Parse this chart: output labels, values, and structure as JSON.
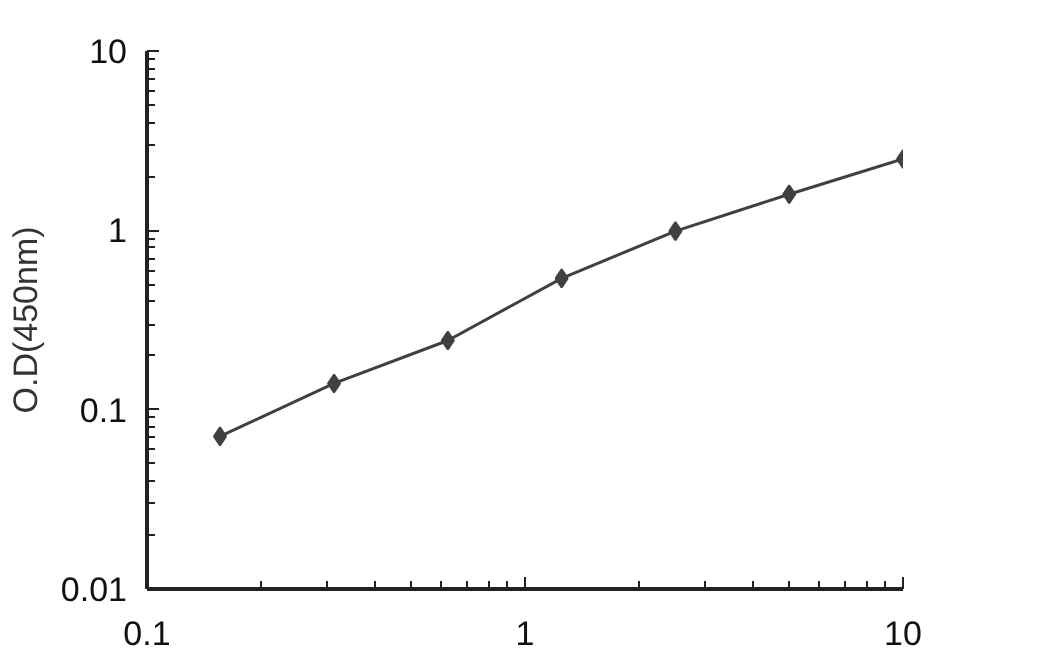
{
  "chart_data": {
    "type": "line",
    "ylabel": "O.D(450nm)",
    "log": "xy",
    "xlim": [
      0.1,
      10
    ],
    "ylim": [
      0.01,
      10
    ],
    "xticks": [
      0.1,
      1,
      10
    ],
    "yticks": [
      0.01,
      0.1,
      1,
      10
    ],
    "marker": "diamond",
    "line_style": "solid",
    "series": [
      {
        "color": "#404040",
        "x": [
          0.156,
          0.3125,
          0.625,
          1.25,
          2.5,
          5,
          10
        ],
        "values": [
          0.071,
          0.14,
          0.243,
          0.54,
          0.99,
          1.59,
          2.5
        ]
      }
    ]
  }
}
